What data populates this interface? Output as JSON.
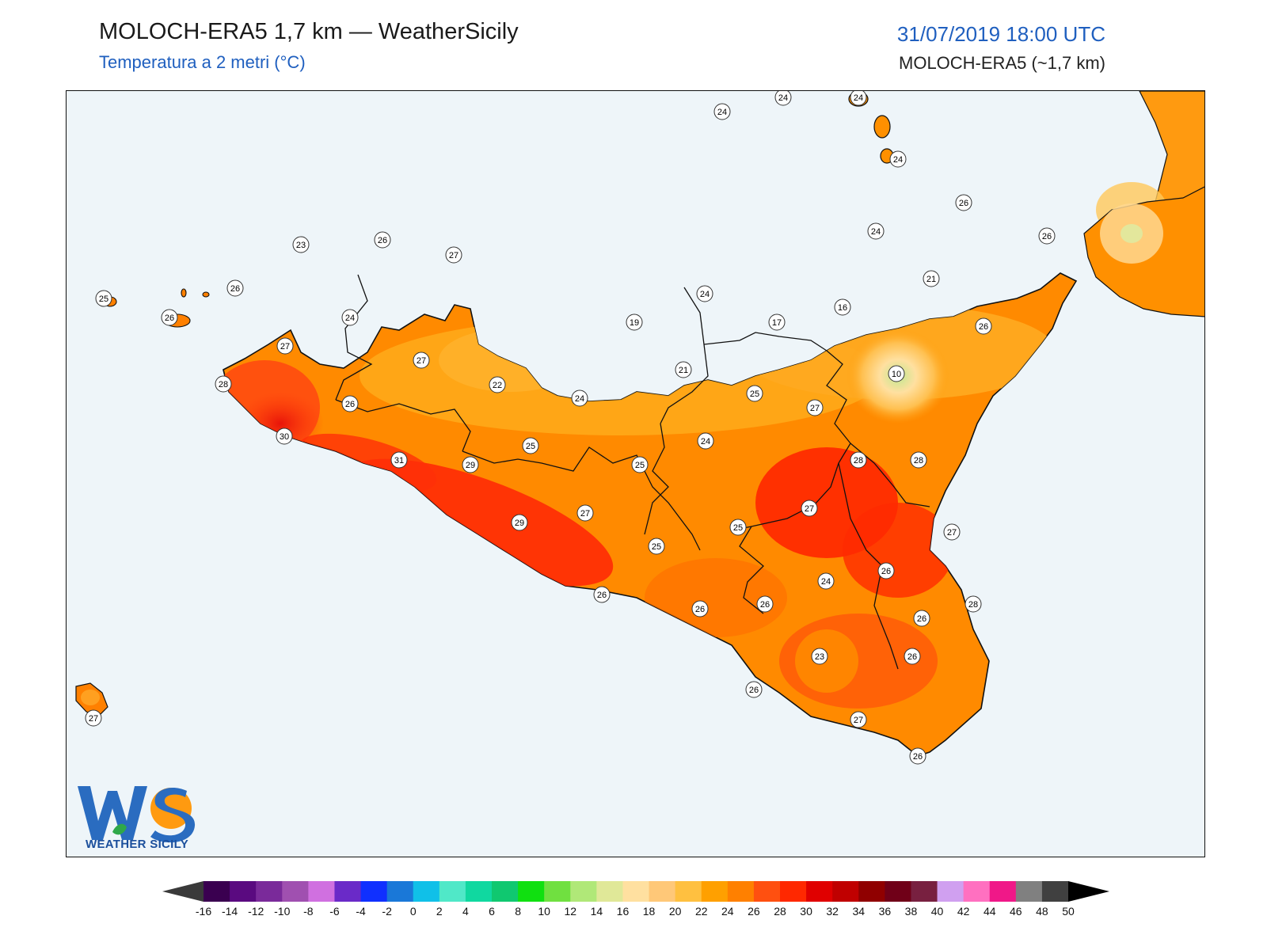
{
  "header": {
    "title": "MOLOCH-ERA5 1,7 km — WeatherSicily",
    "subtitle": "Temperatura a 2 metri (°C)",
    "datetime": "31/07/2019 18:00 UTC",
    "model": "MOLOCH-ERA5 (~1,7 km)"
  },
  "logo": {
    "text": "WEATHER SICILY",
    "icon": "ws-logo-icon"
  },
  "colors": {
    "sea": "#eef5f9",
    "border": "#111111",
    "accent": "#1f5fbf"
  },
  "temperature_labels": [
    {
      "value": "24"
    },
    {
      "value": "24"
    },
    {
      "value": "24"
    },
    {
      "value": "24"
    },
    {
      "value": "26"
    },
    {
      "value": "24"
    },
    {
      "value": "26"
    },
    {
      "value": "21"
    },
    {
      "value": "16"
    },
    {
      "value": "17"
    },
    {
      "value": "24"
    },
    {
      "value": "26"
    },
    {
      "value": "10"
    },
    {
      "value": "23"
    },
    {
      "value": "26"
    },
    {
      "value": "27"
    },
    {
      "value": "25"
    },
    {
      "value": "26"
    },
    {
      "value": "26"
    },
    {
      "value": "24"
    },
    {
      "value": "27"
    },
    {
      "value": "19"
    },
    {
      "value": "21"
    },
    {
      "value": "27"
    },
    {
      "value": "28"
    },
    {
      "value": "22"
    },
    {
      "value": "24"
    },
    {
      "value": "25"
    },
    {
      "value": "26"
    },
    {
      "value": "27"
    },
    {
      "value": "30"
    },
    {
      "value": "31"
    },
    {
      "value": "29"
    },
    {
      "value": "25"
    },
    {
      "value": "25"
    },
    {
      "value": "24"
    },
    {
      "value": "28"
    },
    {
      "value": "28"
    },
    {
      "value": "27"
    },
    {
      "value": "27"
    },
    {
      "value": "29"
    },
    {
      "value": "27"
    },
    {
      "value": "25"
    },
    {
      "value": "25"
    },
    {
      "value": "26"
    },
    {
      "value": "24"
    },
    {
      "value": "26"
    },
    {
      "value": "26"
    },
    {
      "value": "28"
    },
    {
      "value": "26"
    },
    {
      "value": "26"
    },
    {
      "value": "23"
    },
    {
      "value": "26"
    },
    {
      "value": "26"
    },
    {
      "value": "27"
    },
    {
      "value": "26"
    },
    {
      "value": "27"
    }
  ],
  "colorbar": {
    "ticks": [
      "-16",
      "-14",
      "-12",
      "-10",
      "-8",
      "-6",
      "-4",
      "-2",
      "0",
      "2",
      "4",
      "6",
      "8",
      "10",
      "12",
      "14",
      "16",
      "18",
      "20",
      "22",
      "24",
      "26",
      "28",
      "30",
      "32",
      "34",
      "36",
      "38",
      "40",
      "42",
      "44",
      "46",
      "48",
      "50"
    ],
    "colors": [
      "#3a0050",
      "#5a0a80",
      "#7a2a9a",
      "#a050b0",
      "#d070e0",
      "#6a2ac8",
      "#1030ff",
      "#1a78d8",
      "#10c0e8",
      "#50e8c8",
      "#10d8a0",
      "#10c870",
      "#10e010",
      "#70e040",
      "#b0e878",
      "#e0e898",
      "#ffe0a0",
      "#ffc878",
      "#ffc040",
      "#ffa000",
      "#ff8000",
      "#ff5010",
      "#ff2800",
      "#e00000",
      "#c00000",
      "#900000",
      "#700018",
      "#782040",
      "#d0a0f0",
      "#ff70c0",
      "#f01888",
      "#808080",
      "#404040"
    ]
  },
  "icons": {
    "logo": "ws-logo-icon",
    "map": "sicily-map"
  }
}
